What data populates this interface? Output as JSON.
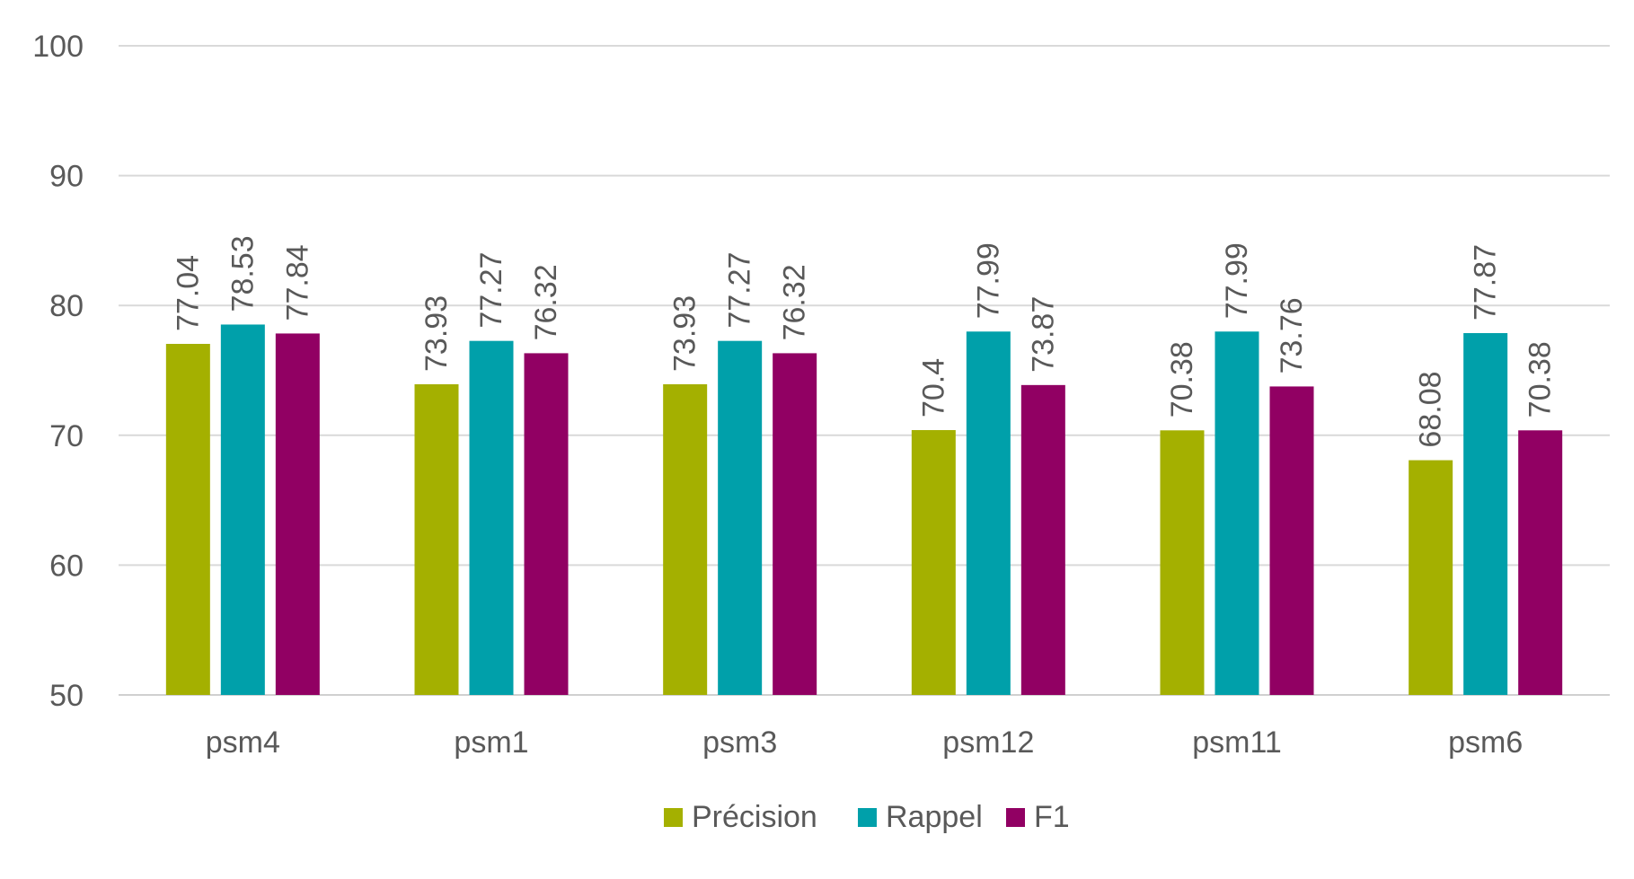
{
  "chart_data": {
    "type": "bar",
    "categories": [
      "psm4",
      "psm1",
      "psm3",
      "psm12",
      "psm11",
      "psm6"
    ],
    "series": [
      {
        "name": "Précision",
        "color": "#A4B000",
        "values": [
          77.04,
          73.93,
          73.93,
          70.4,
          70.38,
          68.08
        ]
      },
      {
        "name": "Rappel",
        "color": "#00A0AA",
        "values": [
          78.53,
          77.27,
          77.27,
          77.99,
          77.99,
          77.87
        ]
      },
      {
        "name": "F1",
        "color": "#910063",
        "values": [
          77.84,
          76.32,
          76.32,
          73.87,
          73.76,
          70.38
        ]
      }
    ],
    "ylim": [
      50,
      100
    ],
    "yticks": [
      50,
      60,
      70,
      80,
      90,
      100
    ],
    "grid": true,
    "legend_position": "bottom-center",
    "data_labels": true
  }
}
